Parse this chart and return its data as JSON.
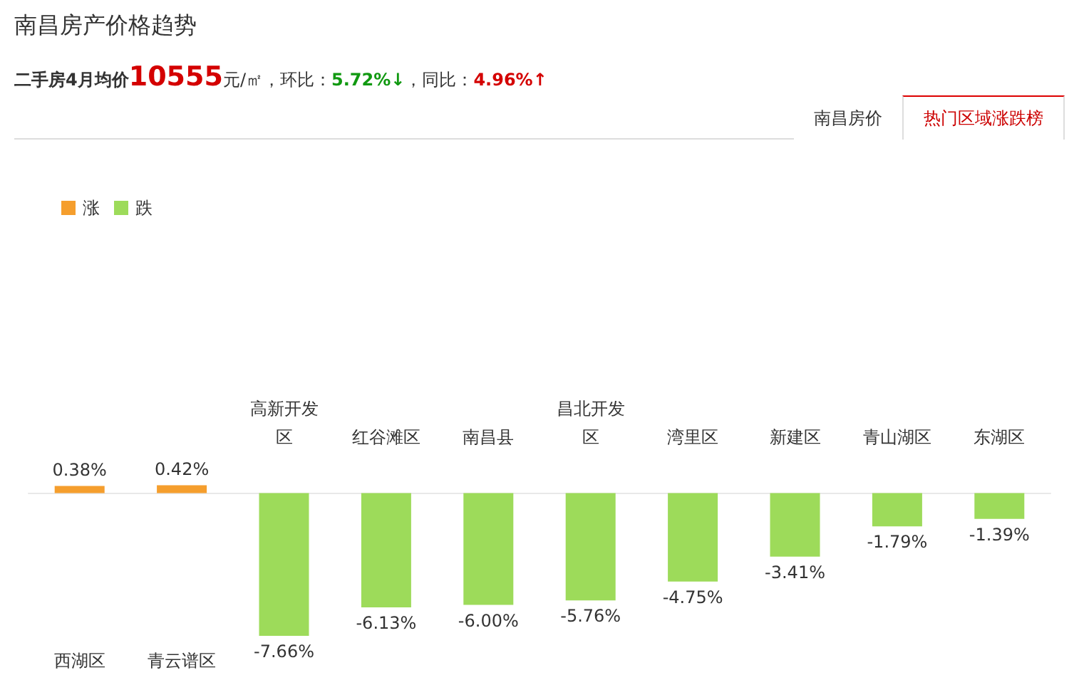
{
  "chart_data": {
    "type": "bar",
    "title": "南昌房产价格趋势",
    "subtitle": "二手房4月均价10555元/㎡，环比：5.72%↓，同比：4.96%↑",
    "annotations": [
      "南昌房价",
      "热门区域涨跌榜"
    ],
    "categories": [
      "西湖区",
      "青云谱区",
      "高新开发区",
      "红谷滩区",
      "南昌县",
      "昌北开发区",
      "湾里区",
      "新建区",
      "青山湖区",
      "东湖区"
    ],
    "stacked": true,
    "legend": "top left",
    "grid": false,
    "series": [
      {
        "name": "涨",
        "color": "#f59e2d",
        "values": [
          0.38,
          0.42,
          null,
          null,
          null,
          null,
          null,
          null,
          null,
          null
        ],
        "value_labels": [
          "0.38%",
          "0.42%",
          null,
          null,
          null,
          null,
          null,
          null,
          null,
          null
        ]
      },
      {
        "name": "跌",
        "color": "#9ddb5a",
        "values": [
          null,
          null,
          -7.66,
          -6.13,
          -6.0,
          -5.76,
          -4.75,
          -3.41,
          -1.79,
          -1.39
        ],
        "value_labels": [
          null,
          null,
          "-7.66%",
          "-6.13%",
          "-6.00%",
          "-5.76%",
          "-4.75%",
          "-3.41%",
          "-1.79%",
          "-1.39%"
        ]
      }
    ]
  }
}
